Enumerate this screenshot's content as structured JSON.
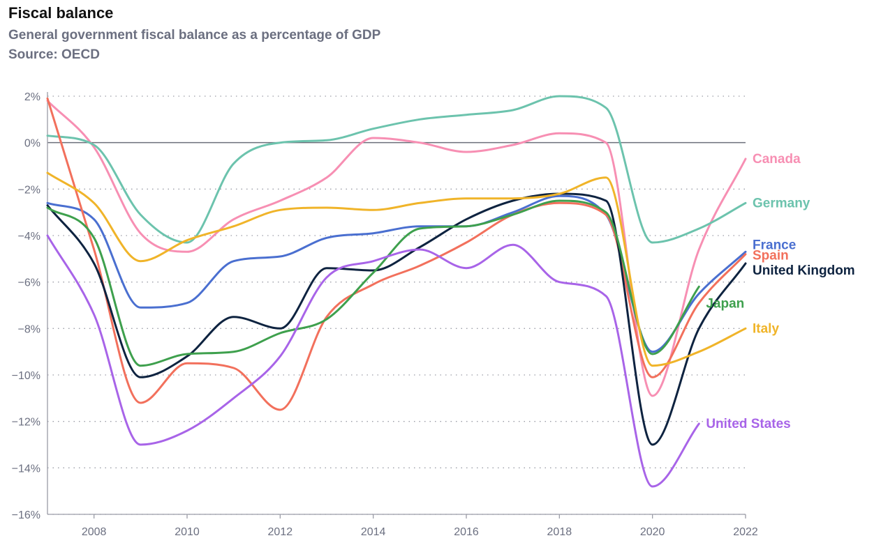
{
  "header": {
    "title": "Fiscal balance",
    "subtitle": "General government fiscal balance as a percentage of GDP",
    "source": "Source: OECD"
  },
  "chart_data": {
    "type": "line",
    "title": "Fiscal balance",
    "subtitle": "General government fiscal balance as a percentage of GDP",
    "xlabel": "",
    "ylabel": "",
    "xlim": [
      2007,
      2022
    ],
    "ylim": [
      -16,
      2
    ],
    "x_ticks": [
      2008,
      2010,
      2012,
      2014,
      2016,
      2018,
      2020,
      2022
    ],
    "x_tick_labels": [
      "2008",
      "2010",
      "2012",
      "2014",
      "2016",
      "2018",
      "2020",
      "2022"
    ],
    "y_ticks": [
      2,
      0,
      -2,
      -4,
      -6,
      -8,
      -10,
      -12,
      -14,
      -16
    ],
    "y_tick_labels": [
      "2%",
      "0%",
      "−2%",
      "−4%",
      "−6%",
      "−8%",
      "−10%",
      "−12%",
      "−14%",
      "−16%"
    ],
    "grid": "horizontal dotted",
    "legend": "direct labels at line ends",
    "series": [
      {
        "name": "Canada",
        "color": "#f78fb3",
        "x": [
          2007,
          2008,
          2009,
          2010,
          2011,
          2012,
          2013,
          2014,
          2015,
          2016,
          2017,
          2018,
          2019,
          2020,
          2021,
          2022
        ],
        "y": [
          1.8,
          -0.2,
          -3.9,
          -4.7,
          -3.3,
          -2.5,
          -1.5,
          0.2,
          0.0,
          -0.4,
          -0.1,
          0.4,
          0.0,
          -10.9,
          -4.6,
          -0.7
        ]
      },
      {
        "name": "Germany",
        "color": "#6cc3ad",
        "x": [
          2007,
          2008,
          2009,
          2010,
          2011,
          2012,
          2013,
          2014,
          2015,
          2016,
          2017,
          2018,
          2019,
          2020,
          2021,
          2022
        ],
        "y": [
          0.3,
          -0.1,
          -3.1,
          -4.3,
          -0.9,
          0.0,
          0.1,
          0.6,
          1.0,
          1.2,
          1.4,
          2.0,
          1.5,
          -4.3,
          -3.7,
          -2.6
        ]
      },
      {
        "name": "France",
        "color": "#4a6fd0",
        "x": [
          2007,
          2008,
          2009,
          2010,
          2011,
          2012,
          2013,
          2014,
          2015,
          2016,
          2017,
          2018,
          2019,
          2020,
          2021,
          2022
        ],
        "y": [
          -2.6,
          -3.3,
          -7.1,
          -6.9,
          -5.1,
          -4.9,
          -4.1,
          -3.9,
          -3.6,
          -3.6,
          -3.0,
          -2.3,
          -3.1,
          -9.0,
          -6.5,
          -4.7
        ]
      },
      {
        "name": "Spain",
        "color": "#f2705c",
        "x": [
          2007,
          2008,
          2009,
          2010,
          2011,
          2012,
          2013,
          2014,
          2015,
          2016,
          2017,
          2018,
          2019,
          2020,
          2021,
          2022
        ],
        "y": [
          1.9,
          -4.6,
          -11.2,
          -9.5,
          -9.7,
          -11.5,
          -7.5,
          -6.1,
          -5.3,
          -4.3,
          -3.1,
          -2.6,
          -3.1,
          -10.1,
          -6.9,
          -4.8
        ]
      },
      {
        "name": "United Kingdom",
        "color": "#0e2340",
        "x": [
          2007,
          2008,
          2009,
          2010,
          2011,
          2012,
          2013,
          2014,
          2015,
          2016,
          2017,
          2018,
          2019,
          2020,
          2021,
          2022
        ],
        "y": [
          -2.7,
          -5.2,
          -10.1,
          -9.2,
          -7.5,
          -8.0,
          -5.4,
          -5.5,
          -4.5,
          -3.3,
          -2.5,
          -2.2,
          -2.5,
          -13.0,
          -8.0,
          -5.2
        ]
      },
      {
        "name": "Japan",
        "color": "#3ea04d",
        "x": [
          2007,
          2008,
          2009,
          2010,
          2011,
          2012,
          2013,
          2014,
          2015,
          2016,
          2017,
          2018,
          2019,
          2020,
          2021
        ],
        "y": [
          -2.8,
          -4.1,
          -9.6,
          -9.1,
          -9.0,
          -8.2,
          -7.6,
          -5.6,
          -3.7,
          -3.6,
          -3.1,
          -2.5,
          -3.0,
          -9.1,
          -6.2
        ]
      },
      {
        "name": "Italy",
        "color": "#f0b429",
        "x": [
          2007,
          2008,
          2009,
          2010,
          2011,
          2012,
          2013,
          2014,
          2015,
          2016,
          2017,
          2018,
          2019,
          2020,
          2021,
          2022
        ],
        "y": [
          -1.3,
          -2.6,
          -5.1,
          -4.2,
          -3.6,
          -2.9,
          -2.8,
          -2.9,
          -2.6,
          -2.4,
          -2.4,
          -2.2,
          -1.5,
          -9.6,
          -9.0,
          -8.0
        ]
      },
      {
        "name": "United States",
        "color": "#a864e8",
        "x": [
          2007,
          2008,
          2009,
          2010,
          2011,
          2012,
          2013,
          2014,
          2015,
          2016,
          2017,
          2018,
          2019,
          2020,
          2021
        ],
        "y": [
          -4.0,
          -7.4,
          -13.0,
          -12.4,
          -11.0,
          -9.2,
          -5.8,
          -5.1,
          -4.6,
          -5.4,
          -4.4,
          -6.0,
          -6.6,
          -14.8,
          -12.1
        ]
      }
    ]
  }
}
